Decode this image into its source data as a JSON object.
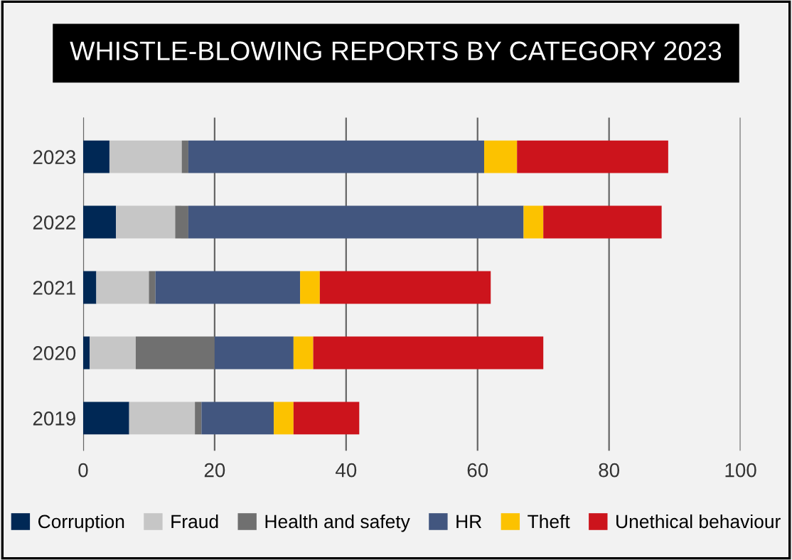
{
  "chart_data": {
    "type": "bar",
    "title": "WHISTLE-BLOWING REPORTS BY CATEGORY 2023",
    "orientation": "horizontal",
    "stacked": true,
    "categories": [
      "2023",
      "2022",
      "2021",
      "2020",
      "2019"
    ],
    "series": [
      {
        "name": "Corruption",
        "color": "#002855",
        "values": [
          4,
          5,
          2,
          1,
          7
        ]
      },
      {
        "name": "Fraud",
        "color": "#c6c6c6",
        "values": [
          11,
          9,
          8,
          7,
          10
        ]
      },
      {
        "name": "Health and safety",
        "color": "#707070",
        "values": [
          1,
          2,
          1,
          12,
          1
        ]
      },
      {
        "name": "HR",
        "color": "#42567f",
        "values": [
          45,
          51,
          22,
          12,
          11
        ]
      },
      {
        "name": "Theft",
        "color": "#fcc200",
        "values": [
          5,
          3,
          3,
          3,
          3
        ]
      },
      {
        "name": "Unethical behaviour",
        "color": "#cc141c",
        "values": [
          23,
          18,
          26,
          35,
          10
        ]
      }
    ],
    "xlim": [
      0,
      100
    ],
    "xticks": [
      0,
      20,
      40,
      60,
      80,
      100
    ],
    "grid": "x",
    "legend": "bottom"
  }
}
